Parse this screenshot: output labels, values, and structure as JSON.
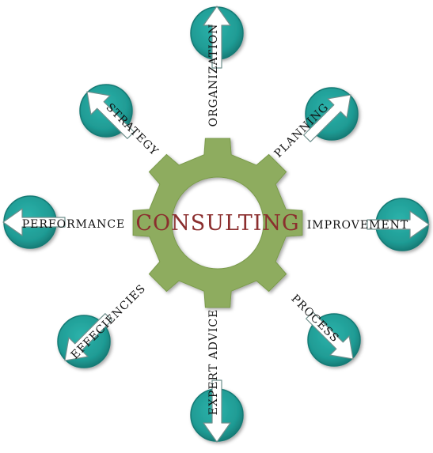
{
  "center": {
    "label": "CONSULTING"
  },
  "spokes": [
    {
      "id": "organization",
      "label": "ORGANIZATION"
    },
    {
      "id": "planning",
      "label": "PLANNING"
    },
    {
      "id": "improvement",
      "label": "IMPROVEMENT"
    },
    {
      "id": "process",
      "label": "PROCESS"
    },
    {
      "id": "expert-advice",
      "label": "EXPERT ADVICE"
    },
    {
      "id": "effeciencies",
      "label": "EFFECIENCIES"
    },
    {
      "id": "performance",
      "label": "PERFORMANCE"
    },
    {
      "id": "strategy",
      "label": "STRATEGY"
    }
  ],
  "colors": {
    "gear": "#8eac5e",
    "gear_edge": "#7a9a4c",
    "circle": "#1f9b94",
    "circle_dark": "#147a74",
    "arrow": "#ffffff",
    "arrow_outline": "#6f8f8c",
    "center_text": "#8b2e2e",
    "label_text": "#111111"
  }
}
